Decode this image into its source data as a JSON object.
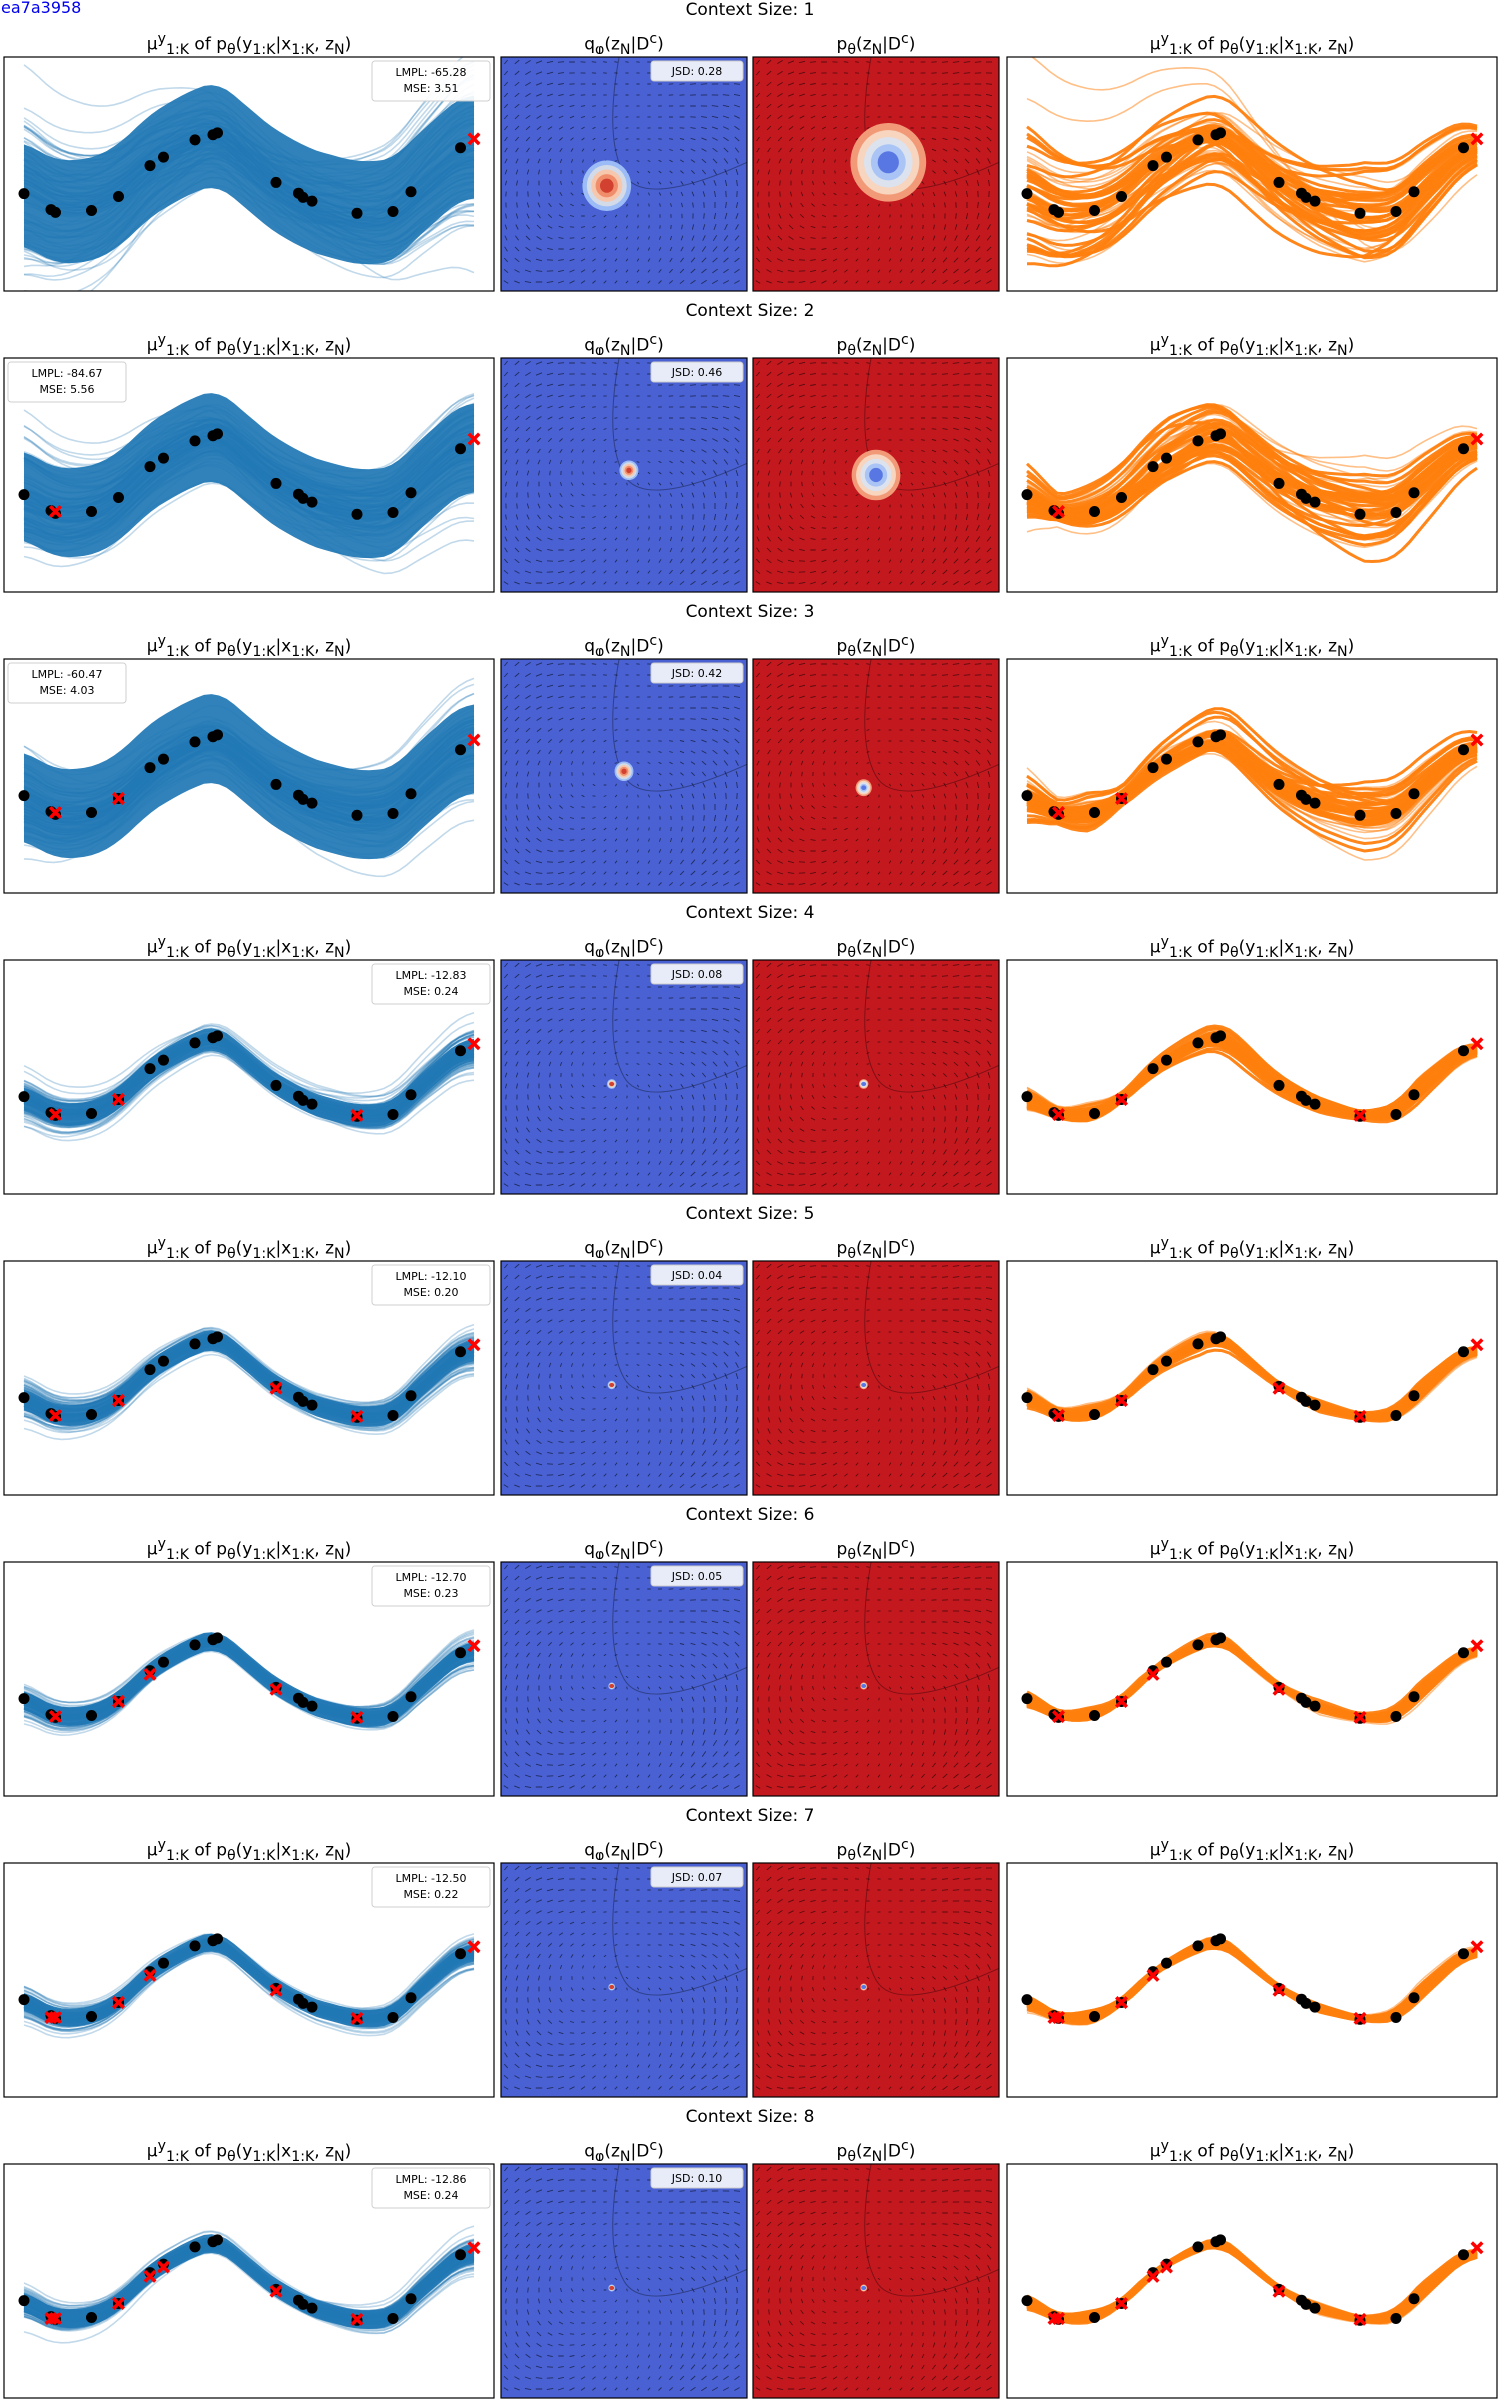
{
  "corner_id": "ea7a3958",
  "titles": {
    "row_prefix": "Context Size: ",
    "decoder": "μ<sup>y</sup><sub>1:K</sub> of p<sub>θ</sub>(y<sub>1:K</sub>|x<sub>1:K</sub>, z<sub>N</sub>)",
    "posterior": "q<sub>φ</sub>(z<sub>N</sub>|D<sup>c</sup>)",
    "prior": "p<sub>θ</sub>(z<sub>N</sub>|D<sup>c</sup>)"
  },
  "colors": {
    "blue_lines": "#1f77b4",
    "orange_lines": "#ff7f0e",
    "posterior_bg": "#4961d2",
    "prior_bg": "#c4181f",
    "context_marker": "#ff0000",
    "target_marker": "#000000"
  },
  "chart_data": {
    "type": "line",
    "grid": false,
    "panels_per_row": 4,
    "target_points": {
      "x": [
        0.0,
        0.06,
        0.07,
        0.15,
        0.21,
        0.28,
        0.31,
        0.38,
        0.42,
        0.43,
        0.56,
        0.61,
        0.62,
        0.64,
        0.74,
        0.82,
        0.86,
        0.97
      ],
      "y": [
        -0.92,
        -1.26,
        -1.32,
        -1.28,
        -0.98,
        -0.32,
        -0.14,
        0.23,
        0.34,
        0.38,
        -0.68,
        -0.91,
        -1.0,
        -1.08,
        -1.34,
        -1.3,
        -0.88,
        0.06
      ]
    },
    "rows": [
      {
        "context_size": "1",
        "lmpl": "LMPL: -65.28",
        "mse": "MSE: 3.51",
        "jsd": "JSD: 0.28",
        "legend_loc": "upper right",
        "band_halfwidth": 1.1,
        "spread": 1.0,
        "ctx_x": [
          1.0
        ],
        "ctx_y": [
          0.25
        ],
        "q_peak": [
          0.43,
          0.55
        ],
        "q_size": 0.18,
        "p_peak": [
          0.55,
          0.45
        ],
        "p_size": 0.28
      },
      {
        "context_size": "2",
        "lmpl": "LMPL: -84.67",
        "mse": "MSE: 5.56",
        "jsd": "JSD: 0.46",
        "legend_loc": "upper left",
        "band_halfwidth": 0.95,
        "spread": 0.78,
        "ctx_x": [
          0.07,
          1.0
        ],
        "ctx_y": [
          -1.28,
          0.27
        ],
        "q_peak": [
          0.52,
          0.48
        ],
        "q_size": 0.07,
        "p_peak": [
          0.5,
          0.5
        ],
        "p_size": 0.18
      },
      {
        "context_size": "3",
        "lmpl": "LMPL: -60.47",
        "mse": "MSE: 4.03",
        "jsd": "JSD: 0.42",
        "legend_loc": "upper left",
        "band_halfwidth": 0.95,
        "spread": 0.7,
        "ctx_x": [
          0.07,
          0.21,
          1.0
        ],
        "ctx_y": [
          -1.28,
          -0.98,
          0.27
        ],
        "q_peak": [
          0.5,
          0.48
        ],
        "q_size": 0.07,
        "p_peak": [
          0.45,
          0.55
        ],
        "p_size": 0.06
      },
      {
        "context_size": "4",
        "lmpl": "LMPL: -12.83",
        "mse": "MSE: 0.24",
        "jsd": "JSD: 0.08",
        "legend_loc": "upper right",
        "band_halfwidth": 0.24,
        "spread": 0.3,
        "ctx_x": [
          0.07,
          0.21,
          0.74,
          1.0
        ],
        "ctx_y": [
          -1.3,
          -0.98,
          -1.32,
          0.21
        ],
        "q_peak": [
          0.45,
          0.53
        ],
        "q_size": 0.035,
        "p_peak": [
          0.45,
          0.53
        ],
        "p_size": 0.035
      },
      {
        "context_size": "5",
        "lmpl": "LMPL: -12.10",
        "mse": "MSE: 0.20",
        "jsd": "JSD: 0.04",
        "legend_loc": "upper right",
        "band_halfwidth": 0.22,
        "spread": 0.26,
        "ctx_x": [
          0.07,
          0.21,
          0.56,
          0.74,
          1.0
        ],
        "ctx_y": [
          -1.3,
          -0.98,
          -0.72,
          -1.32,
          0.21
        ],
        "q_peak": [
          0.45,
          0.53
        ],
        "q_size": 0.03,
        "p_peak": [
          0.45,
          0.53
        ],
        "p_size": 0.03
      },
      {
        "context_size": "6",
        "lmpl": "LMPL: -12.70",
        "mse": "MSE: 0.23",
        "jsd": "JSD: 0.05",
        "legend_loc": "upper right",
        "band_halfwidth": 0.2,
        "spread": 0.22,
        "ctx_x": [
          0.07,
          0.21,
          0.28,
          0.56,
          0.74,
          1.0
        ],
        "ctx_y": [
          -1.3,
          -0.98,
          -0.4,
          -0.72,
          -1.32,
          0.21
        ],
        "q_peak": [
          0.45,
          0.53
        ],
        "q_size": 0.025,
        "p_peak": [
          0.45,
          0.53
        ],
        "p_size": 0.025
      },
      {
        "context_size": "7",
        "lmpl": "LMPL: -12.50",
        "mse": "MSE: 0.22",
        "jsd": "JSD: 0.07",
        "legend_loc": "upper right",
        "band_halfwidth": 0.19,
        "spread": 0.2,
        "ctx_x": [
          0.07,
          0.21,
          0.28,
          0.56,
          0.74,
          1.0,
          0.06
        ],
        "ctx_y": [
          -1.3,
          -0.98,
          -0.4,
          -0.72,
          -1.32,
          0.21,
          -1.3
        ],
        "q_peak": [
          0.45,
          0.53
        ],
        "q_size": 0.025,
        "p_peak": [
          0.45,
          0.53
        ],
        "p_size": 0.025
      },
      {
        "context_size": "8",
        "lmpl": "LMPL: -12.86",
        "mse": "MSE: 0.24",
        "jsd": "JSD: 0.10",
        "legend_loc": "upper right",
        "band_halfwidth": 0.2,
        "spread": 0.22,
        "ctx_x": [
          0.07,
          0.21,
          0.28,
          0.31,
          0.56,
          0.74,
          1.0,
          0.06
        ],
        "ctx_y": [
          -1.3,
          -0.98,
          -0.4,
          -0.2,
          -0.72,
          -1.32,
          0.21,
          -1.3
        ],
        "q_peak": [
          0.45,
          0.53
        ],
        "q_size": 0.025,
        "p_peak": [
          0.45,
          0.53
        ],
        "p_size": 0.025
      }
    ]
  }
}
